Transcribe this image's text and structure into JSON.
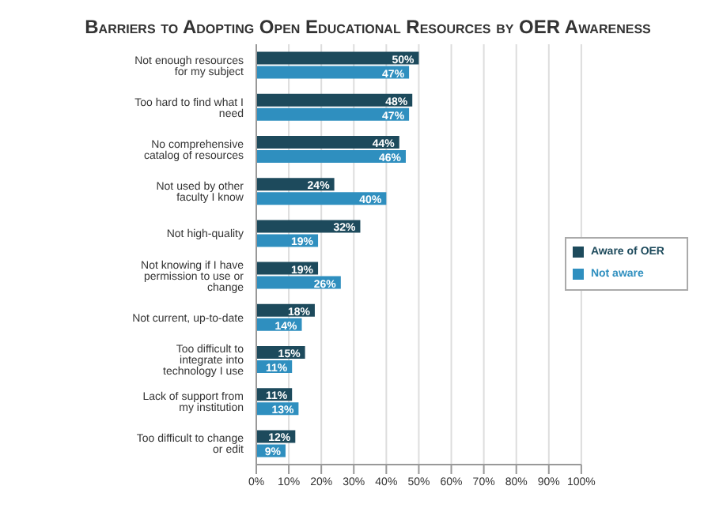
{
  "chart_data": {
    "type": "bar",
    "orientation": "horizontal",
    "title": "Barriers to Adopting Open Educational Resources by OER Awareness",
    "categories": [
      "Not enough resources for my subject",
      "Too hard to find what I need",
      "No comprehensive catalog of resources",
      "Not used by other faculty I know",
      "Not high-quality",
      "Not knowing if I have permission to use or change",
      "Not current, up-to-date",
      "Too difficult to integrate into technology I use",
      "Lack of support from my institution",
      "Too difficult to change or edit"
    ],
    "series": [
      {
        "name": "Aware of OER",
        "color": "#1d4a5c",
        "values": [
          50,
          48,
          44,
          24,
          32,
          19,
          18,
          15,
          11,
          12
        ],
        "value_labels": [
          "50%",
          "48%",
          "44%",
          "24%",
          "32%",
          "19%",
          "18%",
          "15%",
          "11%",
          "12%"
        ]
      },
      {
        "name": "Not aware",
        "color": "#2f8fbf",
        "values": [
          47,
          47,
          46,
          40,
          19,
          26,
          14,
          11,
          13,
          9
        ],
        "value_labels": [
          "47%",
          "47%",
          "46%",
          "40%",
          "19%",
          "26%",
          "14%",
          "11%",
          "13%",
          "9%"
        ]
      }
    ],
    "xlim": [
      0,
      100
    ],
    "xticks": [
      {
        "value": 0,
        "label": "0%"
      },
      {
        "value": 10,
        "label": "10%"
      },
      {
        "value": 20,
        "label": "20%"
      },
      {
        "value": 30,
        "label": "30%"
      },
      {
        "value": 40,
        "label": "40%"
      },
      {
        "value": 50,
        "label": "50%"
      },
      {
        "value": 60,
        "label": "60%"
      },
      {
        "value": 70,
        "label": "70%"
      },
      {
        "value": 80,
        "label": "80%"
      },
      {
        "value": 90,
        "label": "90%"
      },
      {
        "value": 100,
        "label": "100%"
      }
    ],
    "grid": "x",
    "legend": "right"
  }
}
